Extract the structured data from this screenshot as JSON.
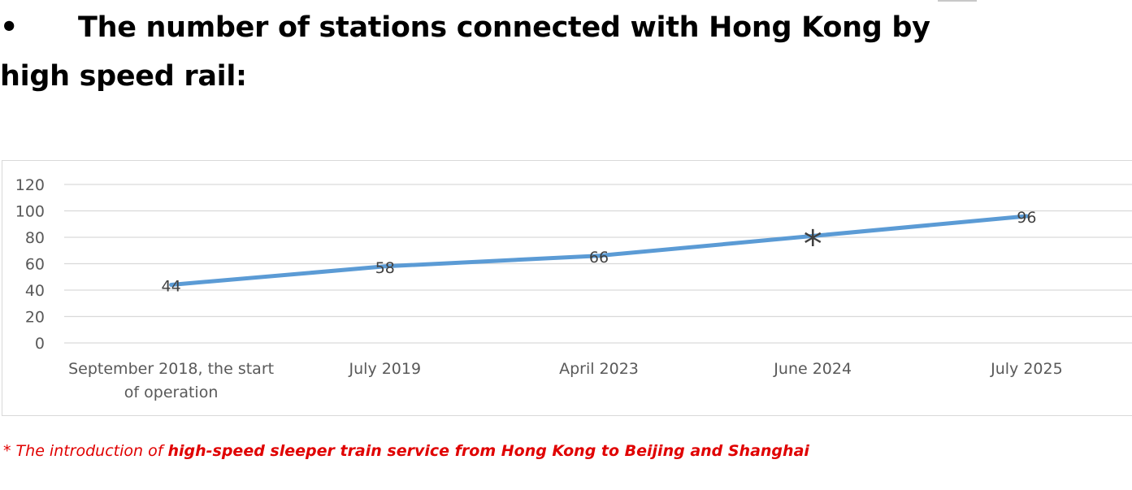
{
  "heading": {
    "bullet": "•",
    "text": "The number of stations connected with Hong Kong by high speed rail:"
  },
  "footnote": {
    "prefix": "* The introduction of ",
    "emphasis": "high-speed sleeper train service from Hong Kong to Beijing and Shanghai"
  },
  "chart_data": {
    "type": "line",
    "categories": [
      [
        "September 2018, the start",
        "of operation"
      ],
      [
        "July 2019"
      ],
      [
        "April 2023"
      ],
      [
        "June 2024"
      ],
      [
        "July 2025"
      ]
    ],
    "values": [
      44,
      58,
      66,
      81,
      96
    ],
    "data_labels": [
      "44",
      "58",
      "66",
      "*",
      "96"
    ],
    "ylim": [
      0,
      120
    ],
    "yticks": [
      0,
      20,
      40,
      60,
      80,
      100,
      120
    ],
    "grid": true,
    "legend": false,
    "line_color": "#5b9bd5",
    "title": "",
    "xlabel": "",
    "ylabel": ""
  }
}
